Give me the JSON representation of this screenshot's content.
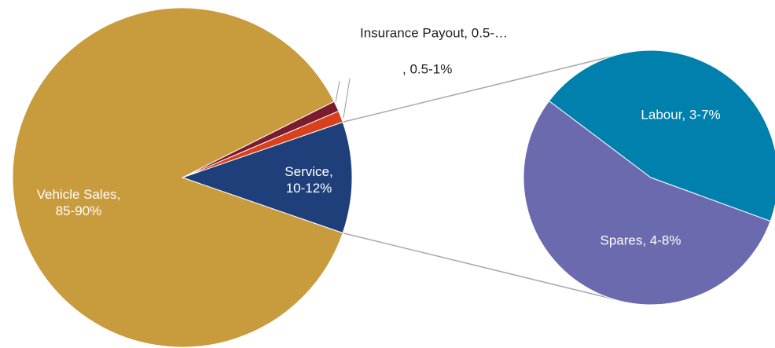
{
  "chart_data": {
    "type": "pie_of_pie",
    "labels": [
      "Vehicle Sales,\n85-90%",
      "Insurance Payout, 0.5-…",
      ",  0.5-1%",
      "Service,\n10-12%"
    ],
    "values": [
      87.3,
      1.0,
      1.1,
      10.6
    ],
    "colors": [
      "#c89b3c",
      "#7b1c2e",
      "#d9401c",
      "#1f3f7a"
    ],
    "secondary": {
      "labels": [
        "Labour, 3-7%",
        "Spares, 4-8%"
      ],
      "values": [
        4.8,
        5.8
      ],
      "colors": [
        "#0080ad",
        "#6c6aae"
      ]
    }
  }
}
